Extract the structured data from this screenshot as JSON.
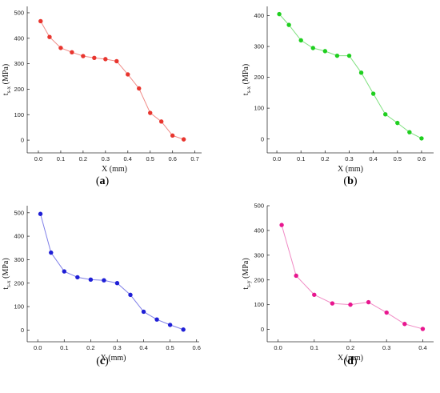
{
  "figure": {
    "panels": [
      {
        "caption_open": "(",
        "letter": "a",
        "caption_close": ")"
      },
      {
        "caption_open": "(",
        "letter": "b",
        "caption_close": ")"
      },
      {
        "caption_open": "(",
        "letter": "c",
        "caption_close": ")"
      },
      {
        "caption_open": "(",
        "letter": "d",
        "caption_close": ")"
      }
    ]
  },
  "chart_data": [
    {
      "type": "line",
      "title": "",
      "xlabel": "X (mm)",
      "ylabel": "τ_{s-x} (MPa)",
      "ylabel_main": "t",
      "ylabel_sub": "s-x",
      "ylabel_unit": " (MPa)",
      "color": "#e8352e",
      "line_color": "#f08a86",
      "xlim": [
        -0.05,
        0.73
      ],
      "ylim": [
        -50,
        525
      ],
      "xticks": [
        0.0,
        0.1,
        0.2,
        0.3,
        0.4,
        0.5,
        0.6,
        0.7
      ],
      "xtick_labels": [
        "0.0",
        "0.1",
        "0.2",
        "0.3",
        "0.4",
        "0.5",
        "0.6",
        "0.7"
      ],
      "yticks": [
        0,
        100,
        200,
        300,
        400,
        500
      ],
      "ytick_labels": [
        "0",
        "100",
        "200",
        "300",
        "400",
        "500"
      ],
      "grid": false,
      "series": [
        {
          "x": [
            0.01,
            0.05,
            0.1,
            0.15,
            0.2,
            0.25,
            0.3,
            0.35,
            0.4,
            0.45,
            0.5,
            0.55,
            0.6,
            0.65
          ],
          "y": [
            467,
            405,
            362,
            345,
            330,
            323,
            318,
            310,
            258,
            203,
            107,
            73,
            18,
            3
          ]
        }
      ]
    },
    {
      "type": "line",
      "title": "",
      "xlabel": "X (mm)",
      "ylabel": "τ_{s-x} (MPa)",
      "ylabel_main": "t",
      "ylabel_sub": "s-x",
      "ylabel_unit": " (MPa)",
      "color": "#1fcf1f",
      "line_color": "#7fe07f",
      "xlim": [
        -0.04,
        0.65
      ],
      "ylim": [
        -45,
        430
      ],
      "xticks": [
        0.0,
        0.1,
        0.2,
        0.3,
        0.4,
        0.5,
        0.6
      ],
      "xtick_labels": [
        "0.0",
        "0.1",
        "0.2",
        "0.3",
        "0.4",
        "0.5",
        "0.6"
      ],
      "yticks": [
        0,
        100,
        200,
        300,
        400
      ],
      "ytick_labels": [
        "0",
        "100",
        "200",
        "300",
        "400"
      ],
      "grid": false,
      "series": [
        {
          "x": [
            0.01,
            0.05,
            0.1,
            0.15,
            0.2,
            0.25,
            0.3,
            0.35,
            0.4,
            0.45,
            0.5,
            0.55,
            0.6
          ],
          "y": [
            405,
            370,
            320,
            295,
            285,
            270,
            270,
            215,
            147,
            80,
            52,
            22,
            2
          ]
        }
      ]
    },
    {
      "type": "line",
      "title": "",
      "xlabel": "X (mm)",
      "ylabel": "τ_{s-x} (MPa)",
      "ylabel_main": "t",
      "ylabel_sub": "s-x",
      "ylabel_unit": " (MPa)",
      "color": "#1f1fd6",
      "line_color": "#8080e8",
      "xlim": [
        -0.04,
        0.61
      ],
      "ylim": [
        -50,
        530
      ],
      "xticks": [
        0.0,
        0.1,
        0.2,
        0.3,
        0.4,
        0.5,
        0.6
      ],
      "xtick_labels": [
        "0.0",
        "0.1",
        "0.2",
        "0.3",
        "0.4",
        "0.5",
        "0.6"
      ],
      "yticks": [
        0,
        100,
        200,
        300,
        400,
        500
      ],
      "ytick_labels": [
        "0",
        "100",
        "200",
        "300",
        "400",
        "500"
      ],
      "grid": false,
      "series": [
        {
          "x": [
            0.01,
            0.05,
            0.1,
            0.15,
            0.2,
            0.25,
            0.3,
            0.35,
            0.4,
            0.45,
            0.5,
            0.55
          ],
          "y": [
            495,
            330,
            250,
            225,
            215,
            212,
            200,
            150,
            78,
            45,
            22,
            2
          ]
        }
      ]
    },
    {
      "type": "line",
      "title": "",
      "xlabel": "X (mm)",
      "ylabel": "τ_{s-y} (MPa)",
      "ylabel_main": "t",
      "ylabel_sub": "s-y",
      "ylabel_unit": " (MPa)",
      "color": "#e8168f",
      "line_color": "#f08ac4",
      "xlim": [
        -0.03,
        0.43
      ],
      "ylim": [
        -50,
        500
      ],
      "xticks": [
        0.0,
        0.1,
        0.2,
        0.3,
        0.4
      ],
      "xtick_labels": [
        "0.0",
        "0.1",
        "0.2",
        "0.3",
        "0.4"
      ],
      "yticks": [
        0,
        100,
        200,
        300,
        400,
        500
      ],
      "ytick_labels": [
        "0",
        "100",
        "200",
        "300",
        "400",
        "500"
      ],
      "grid": false,
      "series": [
        {
          "x": [
            0.01,
            0.05,
            0.1,
            0.15,
            0.2,
            0.25,
            0.3,
            0.35,
            0.4
          ],
          "y": [
            422,
            217,
            140,
            105,
            100,
            110,
            68,
            22,
            2
          ]
        }
      ]
    }
  ]
}
